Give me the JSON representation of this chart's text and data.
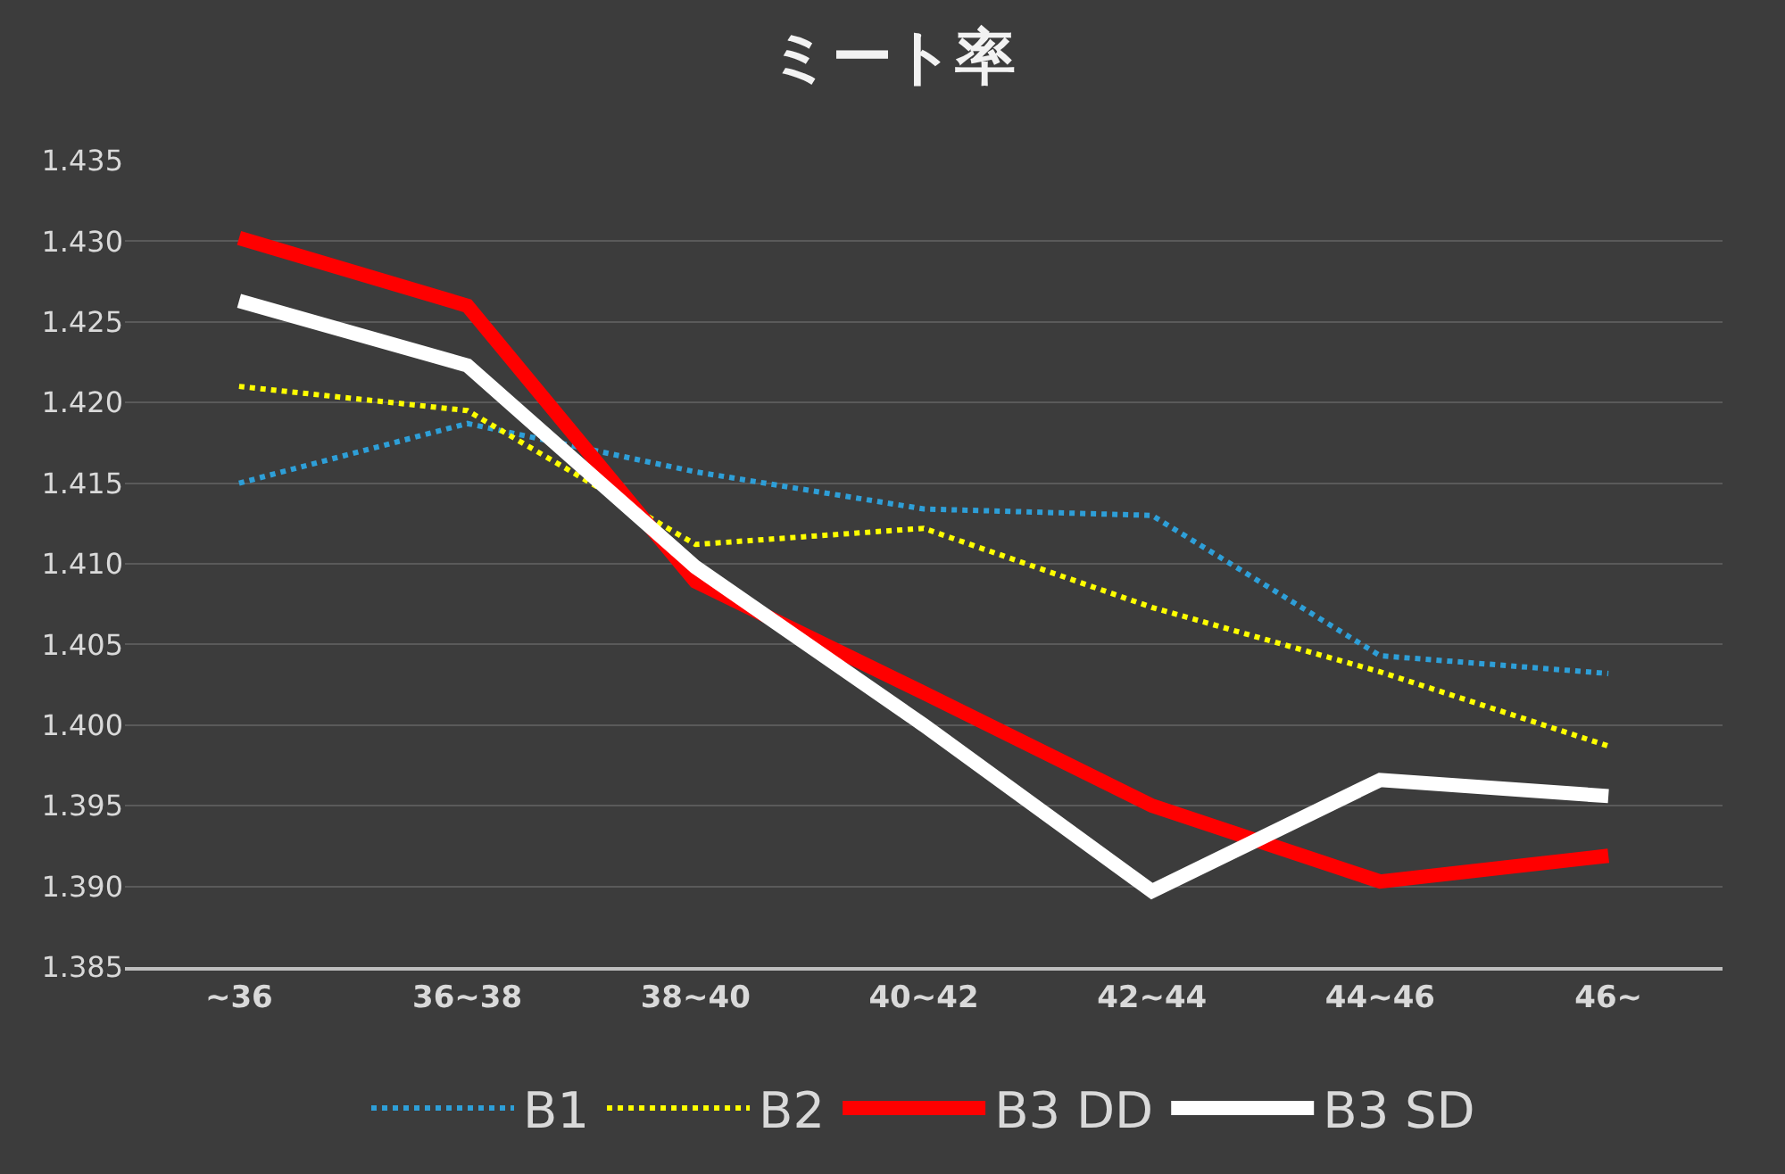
{
  "chart_data": {
    "type": "line",
    "title": "ミート率",
    "categories": [
      "~36",
      "36~38",
      "38~40",
      "40~42",
      "42~44",
      "44~46",
      "46~"
    ],
    "series": [
      {
        "name": "B1",
        "color": "#2e9fd8",
        "line_style": "dotted",
        "values": [
          1.415,
          1.4187,
          1.4157,
          1.4134,
          1.413,
          1.4043,
          1.4032
        ]
      },
      {
        "name": "B2",
        "color": "#ffff00",
        "line_style": "dotted",
        "values": [
          1.421,
          1.4195,
          1.4112,
          1.4122,
          1.4073,
          1.4033,
          1.3987
        ]
      },
      {
        "name": "B3 DD",
        "color": "#ff0000",
        "line_style": "solid",
        "values": [
          1.4302,
          1.426,
          1.4089,
          1.402,
          1.395,
          1.3903,
          1.3919
        ]
      },
      {
        "name": "B3 SD",
        "color": "#ffffff",
        "line_style": "solid",
        "values": [
          1.4263,
          1.4223,
          1.4098,
          1.4,
          1.3897,
          1.3966,
          1.3956
        ]
      }
    ],
    "ylim": [
      1.385,
      1.435
    ],
    "yticks": [
      {
        "value": 1.385,
        "label": "1.385"
      },
      {
        "value": 1.39,
        "label": "1.390"
      },
      {
        "value": 1.395,
        "label": "1.395"
      },
      {
        "value": 1.4,
        "label": "1.400"
      },
      {
        "value": 1.405,
        "label": "1.405"
      },
      {
        "value": 1.41,
        "label": "1.410"
      },
      {
        "value": 1.415,
        "label": "1.415"
      },
      {
        "value": 1.42,
        "label": "1.420"
      },
      {
        "value": 1.425,
        "label": "1.425"
      },
      {
        "value": 1.43,
        "label": "1.430"
      },
      {
        "value": 1.435,
        "label": "1.435"
      }
    ],
    "grid": "y",
    "legend": "bottom",
    "marker": "none"
  }
}
